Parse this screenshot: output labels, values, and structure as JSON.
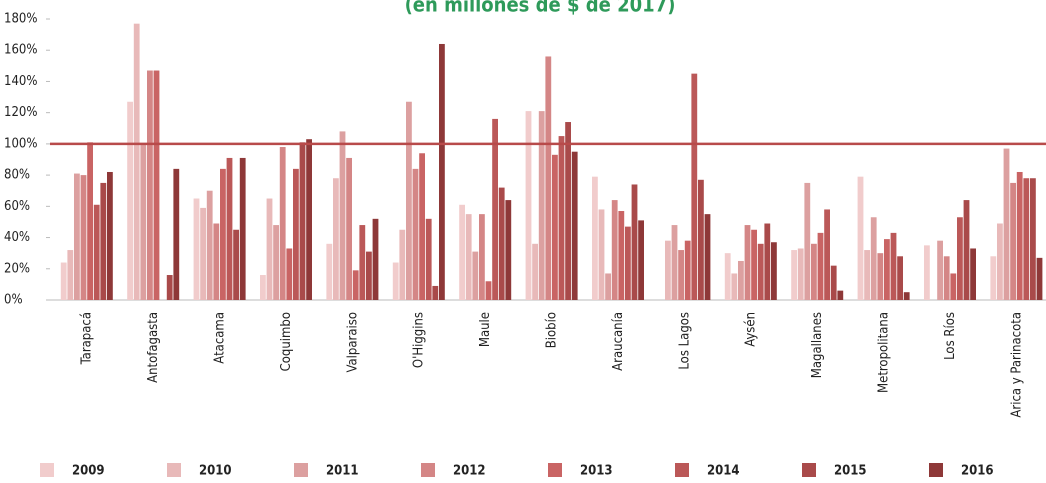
{
  "chart_data": {
    "type": "bar",
    "title": "(en millones de $ de 2017)",
    "categories": [
      "Tarapacá",
      "Antofagasta",
      "Atacama",
      "Coquimbo",
      "Valparaiso",
      "O'Higgins",
      "Maule",
      "Biobío",
      "Araucanía",
      "Los Lagos",
      "Aysén",
      "Magallanes",
      "Metropolitana",
      "Los Ríos",
      "Arica y Parinacota"
    ],
    "series": [
      {
        "name": "2009",
        "color": "#f1cccc",
        "values": [
          24,
          127,
          65,
          16,
          36,
          24,
          61,
          121,
          79,
          null,
          30,
          32,
          79,
          35,
          28
        ]
      },
      {
        "name": "2010",
        "color": "#e8b9b9",
        "values": [
          32,
          177,
          59,
          65,
          78,
          45,
          55,
          36,
          58,
          38,
          17,
          33,
          32,
          null,
          49
        ]
      },
      {
        "name": "2011",
        "color": "#dca0a0",
        "values": [
          81,
          100,
          70,
          48,
          108,
          127,
          31,
          121,
          17,
          48,
          25,
          75,
          53,
          38,
          97
        ]
      },
      {
        "name": "2012",
        "color": "#d48686",
        "values": [
          80,
          147,
          49,
          98,
          91,
          84,
          55,
          156,
          64,
          32,
          48,
          36,
          30,
          28,
          75
        ]
      },
      {
        "name": "2013",
        "color": "#c96464",
        "values": [
          101,
          147,
          84,
          33,
          19,
          94,
          12,
          93,
          57,
          38,
          45,
          43,
          39,
          17,
          82
        ]
      },
      {
        "name": "2014",
        "color": "#bb5858",
        "values": [
          61,
          null,
          91,
          84,
          48,
          52,
          116,
          105,
          47,
          145,
          36,
          58,
          43,
          53,
          78
        ]
      },
      {
        "name": "2015",
        "color": "#a94a4a",
        "values": [
          75,
          16,
          45,
          101,
          31,
          9,
          72,
          114,
          74,
          77,
          49,
          22,
          28,
          64,
          78
        ]
      },
      {
        "name": "2016",
        "color": "#8e3838",
        "values": [
          82,
          84,
          91,
          103,
          52,
          164,
          64,
          95,
          51,
          55,
          37,
          6,
          5,
          33,
          27
        ]
      }
    ],
    "ylim": [
      0,
      180
    ],
    "yticks": [
      {
        "value": 0,
        "label": "0%"
      },
      {
        "value": 20,
        "label": "20%"
      },
      {
        "value": 40,
        "label": "40%"
      },
      {
        "value": 60,
        "label": "60%"
      },
      {
        "value": 80,
        "label": "80%"
      },
      {
        "value": 100,
        "label": "100%"
      },
      {
        "value": 120,
        "label": "120%"
      },
      {
        "value": 140,
        "label": "140%"
      },
      {
        "value": 160,
        "label": "160%"
      },
      {
        "value": 180,
        "label": "180%"
      }
    ],
    "reference_line": 100,
    "reference_color": "#b84a4a"
  }
}
